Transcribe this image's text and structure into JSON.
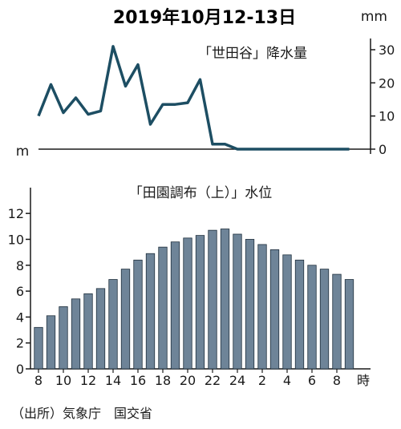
{
  "title": "2019年10月12-13日",
  "source": "（出所）気象庁　国交省",
  "chart_data": [
    {
      "type": "line",
      "title": "「世田谷」降水量",
      "unit": "mm",
      "ylim": [
        0,
        30
      ],
      "yticks": [
        0,
        10,
        20,
        30
      ],
      "grid": false,
      "color": "#1d4e63",
      "x_start_hour": 8,
      "values": [
        10,
        19.5,
        11,
        15.5,
        10.5,
        11.5,
        31,
        19,
        25.5,
        7.5,
        13.5,
        13.5,
        14,
        21,
        1.5,
        1.5,
        0,
        0,
        0,
        0,
        0,
        0,
        0,
        0,
        0,
        0
      ]
    },
    {
      "type": "bar",
      "title": "「田園調布（上）」水位",
      "unit": "m",
      "ylim": [
        0,
        13
      ],
      "yticks": [
        0,
        2,
        4,
        6,
        8,
        10,
        12
      ],
      "grid": false,
      "bar_color": "#6e8498",
      "bar_edge_color": "#1f2f3d",
      "x_tick_labels": [
        "8",
        "10",
        "12",
        "14",
        "16",
        "18",
        "20",
        "22",
        "24",
        "2",
        "4",
        "6",
        "8"
      ],
      "x_unit": "時",
      "x_start_hour": 8,
      "values": [
        3.2,
        4.1,
        4.8,
        5.4,
        5.8,
        6.2,
        6.9,
        7.7,
        8.4,
        8.9,
        9.4,
        9.8,
        10.1,
        10.3,
        10.7,
        10.8,
        10.4,
        10.0,
        9.6,
        9.2,
        8.8,
        8.4,
        8.0,
        7.7,
        7.3,
        6.9
      ]
    }
  ]
}
